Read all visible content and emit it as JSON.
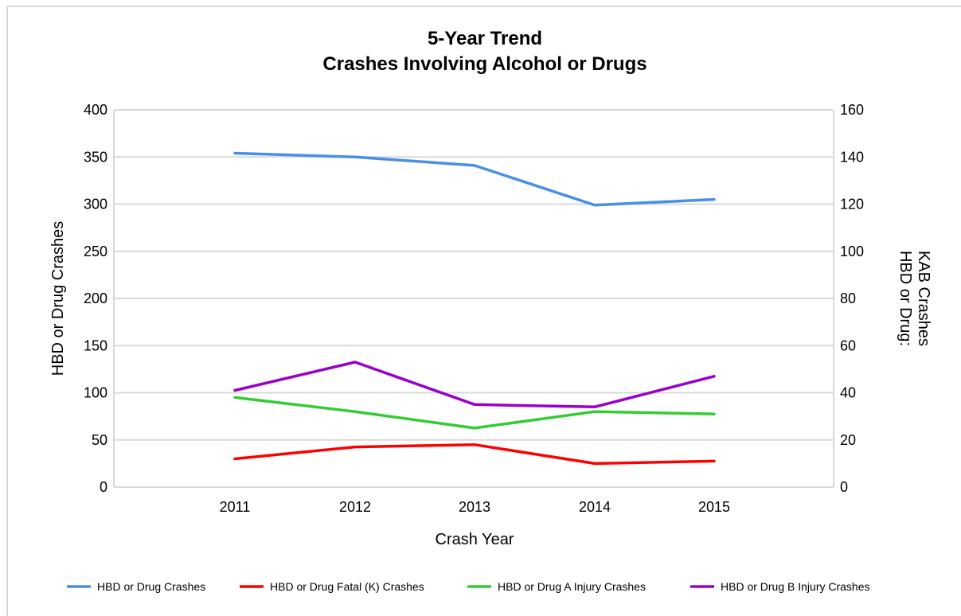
{
  "chart_data": {
    "type": "line",
    "title": [
      "5-Year Trend",
      "Crashes Involving Alcohol or Drugs"
    ],
    "xlabel": "Crash Year",
    "ylabel_left": "HBD or Drug Crashes",
    "ylabel_right": [
      "HBD or Drug:",
      "KAB Crashes"
    ],
    "categories": [
      "2011",
      "2012",
      "2013",
      "2014",
      "2015"
    ],
    "y_left_ticks": [
      "0",
      "50",
      "100",
      "150",
      "200",
      "250",
      "300",
      "350",
      "400"
    ],
    "y_right_ticks": [
      "0",
      "20",
      "40",
      "60",
      "80",
      "100",
      "120",
      "140",
      "160"
    ],
    "ylim_left": [
      0,
      400
    ],
    "ylim_right": [
      0,
      160
    ],
    "grid": true,
    "legend_position": "bottom",
    "series": [
      {
        "name": "HBD or Drug Crashes",
        "axis": "left",
        "color": "#4a8ee8",
        "values": [
          354,
          350,
          341,
          299,
          305
        ]
      },
      {
        "name": "HBD or Drug Fatal (K) Crashes",
        "axis": "right",
        "color": "#ff0000",
        "values": [
          12,
          17,
          18,
          10,
          11
        ]
      },
      {
        "name": "HBD or Drug A Injury Crashes",
        "axis": "right",
        "color": "#33cc33",
        "values": [
          38,
          32,
          25,
          32,
          31
        ]
      },
      {
        "name": "HBD or Drug B Injury Crashes",
        "axis": "right",
        "color": "#9900cc",
        "values": [
          41,
          53,
          35,
          34,
          47
        ]
      }
    ]
  }
}
